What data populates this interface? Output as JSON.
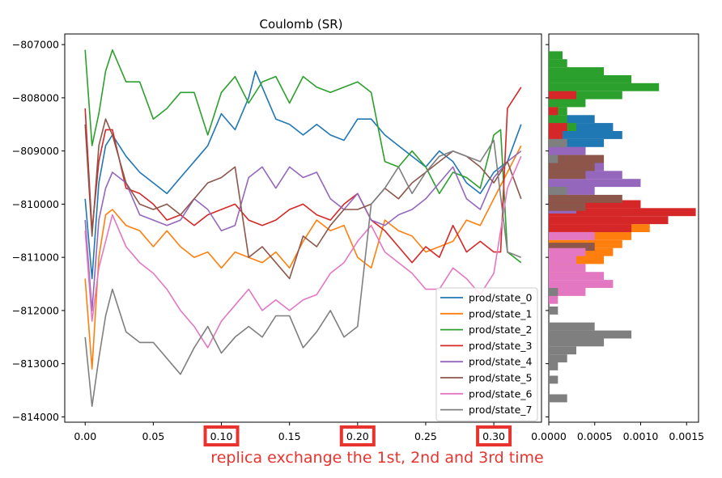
{
  "chart_data": [
    {
      "type": "line",
      "title": "Coulomb (SR)",
      "xlabel": "",
      "ylabel": "",
      "xlim": [
        -0.015,
        0.335
      ],
      "ylim": [
        -814100,
        -806800
      ],
      "x_ticks": [
        0.0,
        0.05,
        0.1,
        0.15,
        0.2,
        0.25,
        0.3
      ],
      "x_tick_labels": [
        "0.00",
        "0.05",
        "0.10",
        "0.15",
        "0.20",
        "0.25",
        "0.30"
      ],
      "highlighted_x_ticks": [
        "0.10",
        "0.20",
        "0.30"
      ],
      "y_ticks": [
        -807000,
        -808000,
        -809000,
        -810000,
        -811000,
        -812000,
        -813000,
        -814000
      ],
      "y_tick_labels": [
        "−807000",
        "−808000",
        "−809000",
        "−810000",
        "−811000",
        "−812000",
        "−813000",
        "−814000"
      ],
      "grid": false,
      "legend_position": "bottom-right",
      "annotation": "replica exchange the 1st, 2nd and 3rd time",
      "annotation_color": "#e8332e",
      "series": [
        {
          "name": "prod/state_0",
          "color": "#1f77b4",
          "x": [
            0.0,
            0.005,
            0.01,
            0.015,
            0.02,
            0.03,
            0.04,
            0.05,
            0.06,
            0.07,
            0.08,
            0.09,
            0.1,
            0.11,
            0.12,
            0.125,
            0.13,
            0.14,
            0.15,
            0.16,
            0.17,
            0.18,
            0.19,
            0.2,
            0.21,
            0.22,
            0.23,
            0.24,
            0.25,
            0.26,
            0.27,
            0.28,
            0.29,
            0.3,
            0.31,
            0.32
          ],
          "y": [
            -809900,
            -811400,
            -809600,
            -808900,
            -808700,
            -809100,
            -809400,
            -809600,
            -809800,
            -809500,
            -809200,
            -808900,
            -808300,
            -808600,
            -808000,
            -807500,
            -807800,
            -808400,
            -808500,
            -808700,
            -808500,
            -808700,
            -808800,
            -808400,
            -808400,
            -808700,
            -808900,
            -809100,
            -809300,
            -809000,
            -809200,
            -809600,
            -809800,
            -809400,
            -809200,
            -808500
          ]
        },
        {
          "name": "prod/state_1",
          "color": "#ff7f0e",
          "x": [
            0.0,
            0.005,
            0.01,
            0.015,
            0.02,
            0.03,
            0.04,
            0.05,
            0.06,
            0.07,
            0.08,
            0.09,
            0.1,
            0.11,
            0.12,
            0.13,
            0.14,
            0.15,
            0.16,
            0.17,
            0.18,
            0.19,
            0.2,
            0.21,
            0.22,
            0.23,
            0.24,
            0.25,
            0.26,
            0.27,
            0.28,
            0.29,
            0.3,
            0.31,
            0.32
          ],
          "y": [
            -811400,
            -813100,
            -811000,
            -810200,
            -810100,
            -810400,
            -810500,
            -810800,
            -810500,
            -810800,
            -811000,
            -810900,
            -811200,
            -810900,
            -811000,
            -811100,
            -810900,
            -811200,
            -810700,
            -810300,
            -810500,
            -810400,
            -811000,
            -811200,
            -810300,
            -810500,
            -810600,
            -810900,
            -810800,
            -810700,
            -810300,
            -810400,
            -809900,
            -809400,
            -808900
          ]
        },
        {
          "name": "prod/state_2",
          "color": "#2ca02c",
          "x": [
            0.0,
            0.005,
            0.01,
            0.015,
            0.02,
            0.03,
            0.04,
            0.05,
            0.06,
            0.07,
            0.08,
            0.09,
            0.1,
            0.11,
            0.12,
            0.13,
            0.14,
            0.15,
            0.16,
            0.17,
            0.18,
            0.19,
            0.2,
            0.21,
            0.22,
            0.23,
            0.24,
            0.25,
            0.26,
            0.27,
            0.28,
            0.29,
            0.3,
            0.305,
            0.31,
            0.32
          ],
          "y": [
            -807100,
            -808900,
            -808300,
            -807500,
            -807100,
            -807700,
            -807700,
            -808400,
            -808200,
            -807900,
            -807900,
            -808700,
            -807900,
            -807600,
            -808100,
            -807700,
            -807600,
            -808100,
            -807600,
            -807800,
            -807900,
            -807800,
            -807700,
            -807900,
            -809200,
            -809300,
            -809000,
            -809300,
            -809800,
            -809400,
            -809500,
            -809700,
            -808700,
            -808600,
            -810900,
            -811100
          ]
        },
        {
          "name": "prod/state_3",
          "color": "#d62728",
          "x": [
            0.0,
            0.005,
            0.01,
            0.015,
            0.02,
            0.03,
            0.04,
            0.05,
            0.06,
            0.07,
            0.08,
            0.09,
            0.1,
            0.11,
            0.12,
            0.13,
            0.14,
            0.15,
            0.16,
            0.17,
            0.18,
            0.19,
            0.2,
            0.21,
            0.22,
            0.23,
            0.24,
            0.25,
            0.26,
            0.27,
            0.28,
            0.29,
            0.3,
            0.305,
            0.31,
            0.32
          ],
          "y": [
            -808200,
            -810500,
            -809200,
            -808600,
            -808600,
            -809700,
            -809800,
            -810000,
            -810300,
            -810200,
            -810400,
            -810200,
            -810100,
            -810000,
            -810300,
            -810400,
            -810300,
            -810100,
            -810000,
            -810200,
            -810300,
            -810000,
            -809800,
            -810300,
            -810500,
            -810800,
            -811100,
            -810800,
            -811000,
            -810400,
            -810900,
            -810700,
            -810900,
            -810900,
            -808200,
            -807800
          ]
        },
        {
          "name": "prod/state_4",
          "color": "#9467bd",
          "x": [
            0.0,
            0.005,
            0.01,
            0.015,
            0.02,
            0.03,
            0.04,
            0.05,
            0.06,
            0.07,
            0.08,
            0.09,
            0.1,
            0.11,
            0.12,
            0.13,
            0.14,
            0.15,
            0.16,
            0.17,
            0.18,
            0.19,
            0.2,
            0.21,
            0.22,
            0.23,
            0.24,
            0.25,
            0.26,
            0.27,
            0.28,
            0.29,
            0.3,
            0.31,
            0.32
          ],
          "y": [
            -810300,
            -812000,
            -810300,
            -809700,
            -809400,
            -809600,
            -810200,
            -810300,
            -810400,
            -810300,
            -809900,
            -810100,
            -810500,
            -810400,
            -809500,
            -809300,
            -809700,
            -809300,
            -809500,
            -809400,
            -809900,
            -810100,
            -809800,
            -810300,
            -810400,
            -810200,
            -810100,
            -809900,
            -809600,
            -809300,
            -809900,
            -810100,
            -809500,
            -809200,
            -809000
          ]
        },
        {
          "name": "prod/state_5",
          "color": "#8c564b",
          "x": [
            0.0,
            0.005,
            0.01,
            0.015,
            0.02,
            0.03,
            0.04,
            0.05,
            0.06,
            0.07,
            0.08,
            0.09,
            0.1,
            0.11,
            0.12,
            0.13,
            0.14,
            0.15,
            0.16,
            0.17,
            0.18,
            0.19,
            0.2,
            0.21,
            0.22,
            0.23,
            0.24,
            0.25,
            0.26,
            0.27,
            0.28,
            0.29,
            0.3,
            0.31,
            0.32
          ],
          "y": [
            -808500,
            -810600,
            -808900,
            -808400,
            -808700,
            -809600,
            -810000,
            -810100,
            -810000,
            -810200,
            -809900,
            -809600,
            -809500,
            -809300,
            -811000,
            -810800,
            -811100,
            -811400,
            -810600,
            -810800,
            -810400,
            -810100,
            -810100,
            -810000,
            -809700,
            -809900,
            -809600,
            -809400,
            -809200,
            -809000,
            -809100,
            -809300,
            -809600,
            -809200,
            -809900
          ]
        },
        {
          "name": "prod/state_6",
          "color": "#e377c2",
          "x": [
            0.0,
            0.005,
            0.01,
            0.015,
            0.02,
            0.03,
            0.04,
            0.05,
            0.06,
            0.07,
            0.08,
            0.09,
            0.1,
            0.11,
            0.12,
            0.13,
            0.14,
            0.15,
            0.16,
            0.17,
            0.18,
            0.19,
            0.2,
            0.21,
            0.22,
            0.23,
            0.24,
            0.25,
            0.26,
            0.27,
            0.28,
            0.29,
            0.3,
            0.31,
            0.32
          ],
          "y": [
            -810500,
            -812200,
            -811200,
            -810700,
            -810200,
            -810800,
            -811100,
            -811300,
            -811600,
            -812000,
            -812300,
            -812700,
            -812200,
            -811900,
            -811600,
            -812000,
            -811800,
            -812000,
            -811800,
            -811700,
            -811300,
            -811100,
            -810700,
            -810400,
            -810900,
            -811100,
            -811300,
            -811600,
            -811600,
            -811200,
            -811400,
            -811700,
            -811300,
            -809700,
            -809100
          ]
        },
        {
          "name": "prod/state_7",
          "color": "#7f7f7f",
          "x": [
            0.0,
            0.005,
            0.01,
            0.015,
            0.02,
            0.03,
            0.04,
            0.05,
            0.06,
            0.07,
            0.08,
            0.09,
            0.1,
            0.11,
            0.12,
            0.13,
            0.14,
            0.15,
            0.16,
            0.17,
            0.18,
            0.19,
            0.2,
            0.21,
            0.22,
            0.23,
            0.24,
            0.25,
            0.26,
            0.27,
            0.28,
            0.29,
            0.3,
            0.31,
            0.32
          ],
          "y": [
            -812500,
            -813800,
            -812900,
            -812100,
            -811600,
            -812400,
            -812600,
            -812600,
            -812900,
            -813200,
            -812700,
            -812300,
            -812800,
            -812500,
            -812300,
            -812500,
            -812100,
            -812100,
            -812700,
            -812400,
            -812000,
            -812500,
            -812300,
            -810000,
            -809700,
            -809300,
            -809800,
            -809400,
            -809100,
            -809000,
            -809100,
            -809200,
            -808800,
            -810900,
            -811000
          ]
        }
      ]
    },
    {
      "type": "bar",
      "orientation": "horizontal",
      "title": "",
      "xlim": [
        0,
        0.00163
      ],
      "ylim": [
        -814100,
        -806800
      ],
      "x_ticks": [
        0,
        0.0005,
        0.001,
        0.0015
      ],
      "x_tick_labels": [
        "0.0000",
        "0.0005",
        "0.0010",
        "0.0015"
      ],
      "series": [
        {
          "name": "prod/state_0",
          "color": "#1f77b4",
          "bins": [
            [
              -808400,
              0.0005
            ],
            [
              -808550,
              0.0007
            ],
            [
              -808700,
              0.0008
            ],
            [
              -808850,
              0.0006
            ],
            [
              -809000,
              0.0004
            ]
          ]
        },
        {
          "name": "prod/state_1",
          "color": "#ff7f0e",
          "bins": [
            [
              -810300,
              0.0008
            ],
            [
              -810450,
              0.0011
            ],
            [
              -810600,
              0.0009
            ],
            [
              -810750,
              0.0008
            ],
            [
              -810900,
              0.0007
            ],
            [
              -811050,
              0.0006
            ],
            [
              -811200,
              0.0004
            ]
          ]
        },
        {
          "name": "prod/state_2",
          "color": "#2ca02c",
          "bins": [
            [
              -807200,
              0.00015
            ],
            [
              -807350,
              0.0002
            ],
            [
              -807500,
              0.0006
            ],
            [
              -807650,
              0.0009
            ],
            [
              -807800,
              0.0012
            ],
            [
              -807950,
              0.0008
            ],
            [
              -808100,
              0.0004
            ],
            [
              -808250,
              0.0002
            ],
            [
              -808400,
              0.0002
            ],
            [
              -808550,
              0.0003
            ]
          ]
        },
        {
          "name": "prod/state_3",
          "color": "#d62728",
          "bins": [
            [
              -807950,
              0.0003
            ],
            [
              -808250,
              0.0001
            ],
            [
              -808550,
              0.0002
            ],
            [
              -808700,
              0.00015
            ],
            [
              -810000,
              0.001
            ],
            [
              -810150,
              0.0016
            ],
            [
              -810300,
              0.0013
            ],
            [
              -810450,
              0.0009
            ]
          ]
        },
        {
          "name": "prod/state_4",
          "color": "#9467bd",
          "bins": [
            [
              -809000,
              0.0004
            ],
            [
              -809300,
              0.0006
            ],
            [
              -809450,
              0.0008
            ],
            [
              -809600,
              0.001
            ],
            [
              -809750,
              0.0005
            ],
            [
              -810100,
              0.0003
            ]
          ]
        },
        {
          "name": "prod/state_5",
          "color": "#8c564b",
          "bins": [
            [
              -809150,
              0.0006
            ],
            [
              -809300,
              0.0005
            ],
            [
              -809450,
              0.0004
            ],
            [
              -809900,
              0.0008
            ],
            [
              -810050,
              0.0004
            ],
            [
              -810800,
              0.0005
            ]
          ]
        },
        {
          "name": "prod/state_6",
          "color": "#e377c2",
          "bins": [
            [
              -810600,
              0.0005
            ],
            [
              -810900,
              0.0004
            ],
            [
              -811050,
              0.0003
            ],
            [
              -811200,
              0.0004
            ],
            [
              -811350,
              0.0006
            ],
            [
              -811500,
              0.0007
            ],
            [
              -811650,
              0.0004
            ],
            [
              -811800,
              0.0001
            ]
          ]
        },
        {
          "name": "prod/state_7",
          "color": "#7f7f7f",
          "bins": [
            [
              -808850,
              0.0002
            ],
            [
              -809150,
              0.0001
            ],
            [
              -809750,
              0.0002
            ],
            [
              -811650,
              0.0001
            ],
            [
              -812000,
              0.0001
            ],
            [
              -812300,
              0.0005
            ],
            [
              -812450,
              0.0009
            ],
            [
              -812600,
              0.0006
            ],
            [
              -812750,
              0.0003
            ],
            [
              -812900,
              0.0002
            ],
            [
              -813050,
              0.0001
            ],
            [
              -813300,
              0.0001
            ],
            [
              -813650,
              0.0002
            ]
          ]
        }
      ]
    }
  ]
}
